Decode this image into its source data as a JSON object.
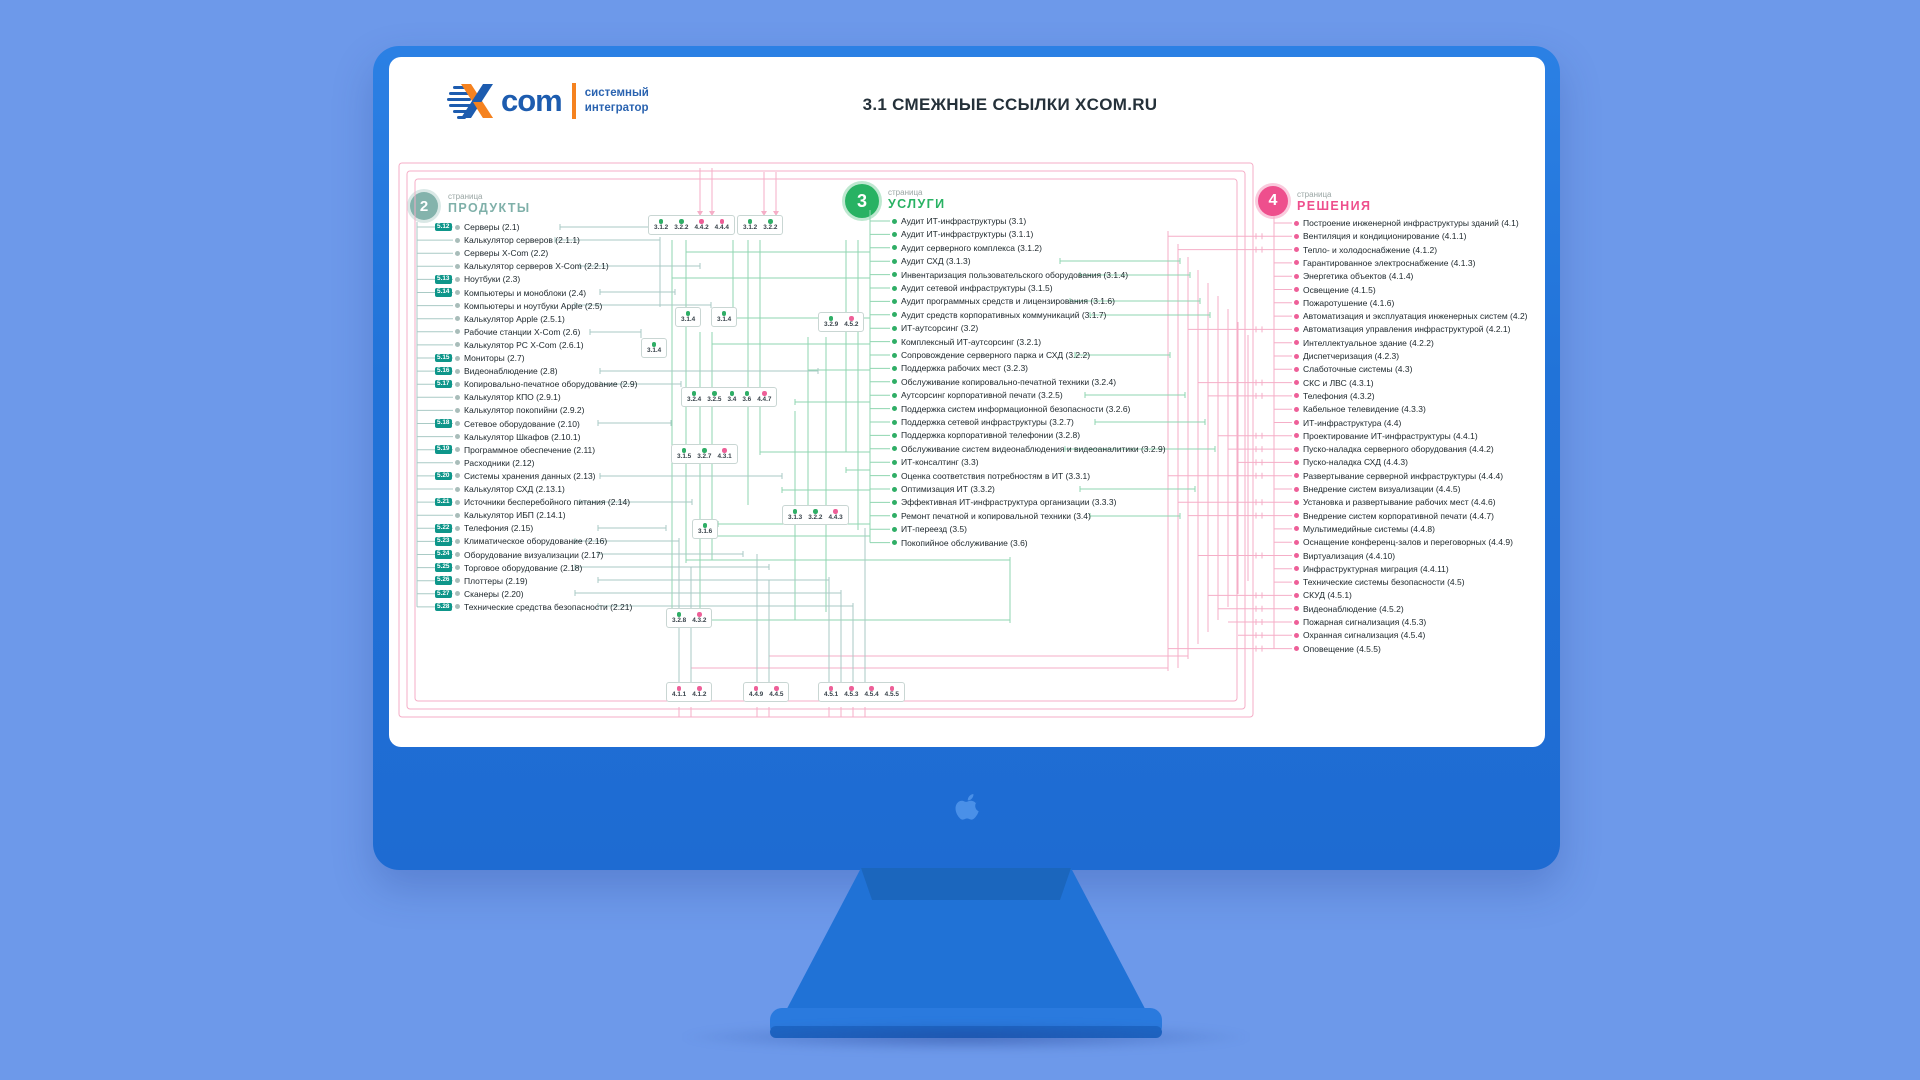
{
  "title": "3.1 СМЕЖНЫЕ ССЫЛКИ XCOM.RU",
  "logo": {
    "brand_text": "com",
    "tagline1": "системный",
    "tagline2": "интегратор"
  },
  "colors": {
    "green": "#2fae66",
    "pink": "#ee5f98",
    "teal": "#0e968a",
    "teal_line": "#a9cac5",
    "green_line": "#8fd6b1",
    "pink_line": "#f5aec7"
  },
  "columns": {
    "products": {
      "page_number": "2",
      "page_label": "страница",
      "title": "ПРОДУКТЫ",
      "items": [
        {
          "badge": "5.12",
          "label": "Серверы (2.1)"
        },
        {
          "label": "Калькулятор серверов (2.1.1)"
        },
        {
          "label": "Серверы X-Com (2.2)"
        },
        {
          "label": "Калькулятор серверов X-Com (2.2.1)"
        },
        {
          "badge": "5.13",
          "label": "Ноутбуки (2.3)"
        },
        {
          "badge": "5.14",
          "label": "Компьютеры и моноблоки (2.4)"
        },
        {
          "label": "Компьютеры и ноутбуки Apple (2.5)"
        },
        {
          "label": "Калькулятор Apple (2.5.1)"
        },
        {
          "label": "Рабочие станции X-Com (2.6)"
        },
        {
          "label": "Калькулятор РС X-Com (2.6.1)"
        },
        {
          "badge": "5.15",
          "label": "Мониторы (2.7)"
        },
        {
          "badge": "5.16",
          "label": "Видеонаблюдение (2.8)"
        },
        {
          "badge": "5.17",
          "label": "Копировально-печатное оборудование (2.9)"
        },
        {
          "label": "Калькулятор КПО (2.9.1)"
        },
        {
          "label": "Калькулятор покопийни (2.9.2)"
        },
        {
          "badge": "5.18",
          "label": "Сетевое оборудование (2.10)"
        },
        {
          "label": "Калькулятор Шкафов (2.10.1)"
        },
        {
          "badge": "5.19",
          "label": "Программное обеспечение (2.11)"
        },
        {
          "label": "Расходники (2.12)"
        },
        {
          "badge": "5.20",
          "label": "Системы хранения данных (2.13)"
        },
        {
          "label": "Калькулятор СХД (2.13.1)"
        },
        {
          "badge": "5.21",
          "label": "Источники бесперебойного питания (2.14)"
        },
        {
          "label": "Калькулятор ИБП (2.14.1)"
        },
        {
          "badge": "5.22",
          "label": "Телефония (2.15)"
        },
        {
          "badge": "5.23",
          "label": "Климатическое оборудование (2.16)"
        },
        {
          "badge": "5.24",
          "label": "Оборудование визуализации (2.17)"
        },
        {
          "badge": "5.25",
          "label": "Торговое оборудование (2.18)"
        },
        {
          "badge": "5.26",
          "label": "Плоттеры (2.19)"
        },
        {
          "badge": "5.27",
          "label": "Сканеры (2.20)"
        },
        {
          "badge": "5.28",
          "label": "Технические средства безопасности (2.21)"
        }
      ]
    },
    "services": {
      "page_number": "3",
      "page_label": "страница",
      "title": "УСЛУГИ",
      "items": [
        {
          "label": "Аудит ИТ-инфраструктуры (3.1)"
        },
        {
          "label": "Аудит ИТ-инфраструктуры (3.1.1)"
        },
        {
          "label": "Аудит серверного комплекса (3.1.2)"
        },
        {
          "label": "Аудит СХД (3.1.3)"
        },
        {
          "label": "Инвентаризация пользовательского оборудования (3.1.4)"
        },
        {
          "label": "Аудит сетевой инфраструктуры (3.1.5)"
        },
        {
          "label": "Аудит программных средств и лицензирования (3.1.6)"
        },
        {
          "label": "Аудит средств корпоративных коммуникаций (3.1.7)"
        },
        {
          "label": "ИТ-аутсорсинг (3.2)"
        },
        {
          "label": "Комплексный ИТ-аутсорсинг (3.2.1)"
        },
        {
          "label": "Сопровождение серверного парка и СХД (3.2.2)"
        },
        {
          "label": "Поддержка рабочих мест (3.2.3)"
        },
        {
          "label": "Обслуживание копировально-печатной техники (3.2.4)"
        },
        {
          "label": "Аутсорсинг корпоративной печати (3.2.5)"
        },
        {
          "label": "Поддержка систем информационной безопасности (3.2.6)"
        },
        {
          "label": "Поддержка сетевой инфраструктуры (3.2.7)"
        },
        {
          "label": "Поддержка корпоративной телефонии (3.2.8)"
        },
        {
          "label": "Обслуживание систем видеонаблюдения и видеоаналитики (3.2.9)"
        },
        {
          "label": "ИТ-консалтинг (3.3)"
        },
        {
          "label": "Оценка соответствия потребностям в ИТ (3.3.1)"
        },
        {
          "label": "Оптимизация ИТ (3.3.2)"
        },
        {
          "label": "Эффективная ИТ-инфраструктура организации (3.3.3)"
        },
        {
          "label": "Ремонт печатной и копировальной техники (3.4)"
        },
        {
          "label": "ИТ-переезд (3.5)"
        },
        {
          "label": "Покопийное обслуживание (3.6)"
        }
      ]
    },
    "solutions": {
      "page_number": "4",
      "page_label": "страница",
      "title": "РЕШЕНИЯ",
      "items": [
        {
          "label": "Построение инженерной инфраструктуры зданий (4.1)"
        },
        {
          "label": "Вентиляция и кондиционирование (4.1.1)"
        },
        {
          "label": "Тепло- и холодоснабжение (4.1.2)"
        },
        {
          "label": "Гарантированное электроснабжение (4.1.3)"
        },
        {
          "label": "Энергетика объектов (4.1.4)"
        },
        {
          "label": "Освещение (4.1.5)"
        },
        {
          "label": "Пожаротушение (4.1.6)"
        },
        {
          "label": "Автоматизация и эксплуатация инженерных систем (4.2)"
        },
        {
          "label": "Автоматизация управления инфраструктурой (4.2.1)"
        },
        {
          "label": "Интеллектуальное здание (4.2.2)"
        },
        {
          "label": "Диспетчеризация (4.2.3)"
        },
        {
          "label": "Слаботочные системы (4.3)"
        },
        {
          "label": "СКС и ЛВС (4.3.1)"
        },
        {
          "label": "Телефония (4.3.2)"
        },
        {
          "label": "Кабельное телевидение (4.3.3)"
        },
        {
          "label": "ИТ-инфраструктура (4.4)"
        },
        {
          "label": "Проектирование ИТ-инфраструктуры (4.4.1)"
        },
        {
          "label": "Пуско-наладка серверного оборудования (4.4.2)"
        },
        {
          "label": "Пуско-наладка СХД (4.4.3)"
        },
        {
          "label": "Развертывание серверной инфраструктуры (4.4.4)"
        },
        {
          "label": "Внедрение систем визуализации (4.4.5)"
        },
        {
          "label": "Установка и развертывание рабочих мест (4.4.6)"
        },
        {
          "label": "Внедрение систем корпоративной печати (4.4.7)"
        },
        {
          "label": "Мультимедийные системы (4.4.8)"
        },
        {
          "label": "Оснащение конференц-залов и переговорных (4.4.9)"
        },
        {
          "label": "Виртуализация (4.4.10)"
        },
        {
          "label": "Инфраструктурная миграция (4.4.11)"
        },
        {
          "label": "Технические системы безопасности (4.5)"
        },
        {
          "label": "СКУД (4.5.1)"
        },
        {
          "label": "Видеонаблюдение (4.5.2)"
        },
        {
          "label": "Пожарная сигнализация (4.5.3)"
        },
        {
          "label": "Охранная сигнализация (4.5.4)"
        },
        {
          "label": "Оповещение (4.5.5)"
        }
      ]
    }
  },
  "connector_boxes": [
    {
      "refs": [
        {
          "num": "3.1.2",
          "color": "green"
        },
        {
          "num": "3.2.2",
          "color": "green"
        },
        {
          "num": "4.4.2",
          "color": "pink"
        },
        {
          "num": "4.4.4",
          "color": "pink"
        }
      ]
    },
    {
      "refs": [
        {
          "num": "3.1.2",
          "color": "green"
        },
        {
          "num": "3.2.2",
          "color": "green"
        }
      ]
    },
    {
      "refs": [
        {
          "num": "3.1.4",
          "color": "green"
        }
      ]
    },
    {
      "refs": [
        {
          "num": "3.1.4",
          "color": "green"
        }
      ]
    },
    {
      "refs": [
        {
          "num": "3.1.4",
          "color": "green"
        }
      ]
    },
    {
      "refs": [
        {
          "num": "3.2.9",
          "color": "green"
        },
        {
          "num": "4.5.2",
          "color": "pink"
        }
      ]
    },
    {
      "refs": [
        {
          "num": "3.2.4",
          "color": "green"
        },
        {
          "num": "3.2.5",
          "color": "green"
        },
        {
          "num": "3.4",
          "color": "green"
        },
        {
          "num": "3.6",
          "color": "green"
        },
        {
          "num": "4.4.7",
          "color": "pink"
        }
      ]
    },
    {
      "refs": [
        {
          "num": "3.1.5",
          "color": "green"
        },
        {
          "num": "3.2.7",
          "color": "green"
        },
        {
          "num": "4.3.1",
          "color": "pink"
        }
      ]
    },
    {
      "refs": [
        {
          "num": "3.1.6",
          "color": "green"
        }
      ]
    },
    {
      "refs": [
        {
          "num": "3.1.3",
          "color": "green"
        },
        {
          "num": "3.2.2",
          "color": "green"
        },
        {
          "num": "4.4.3",
          "color": "pink"
        }
      ]
    },
    {
      "refs": [
        {
          "num": "3.2.8",
          "color": "green"
        },
        {
          "num": "4.3.2",
          "color": "pink"
        }
      ]
    },
    {
      "refs": [
        {
          "num": "4.1.1",
          "color": "pink"
        },
        {
          "num": "4.1.2",
          "color": "pink"
        }
      ]
    },
    {
      "refs": [
        {
          "num": "4.4.9",
          "color": "pink"
        },
        {
          "num": "4.4.5",
          "color": "pink"
        }
      ]
    },
    {
      "refs": [
        {
          "num": "4.5.1",
          "color": "pink"
        },
        {
          "num": "4.5.3",
          "color": "pink"
        },
        {
          "num": "4.5.4",
          "color": "pink"
        },
        {
          "num": "4.5.5",
          "color": "pink"
        }
      ]
    }
  ]
}
